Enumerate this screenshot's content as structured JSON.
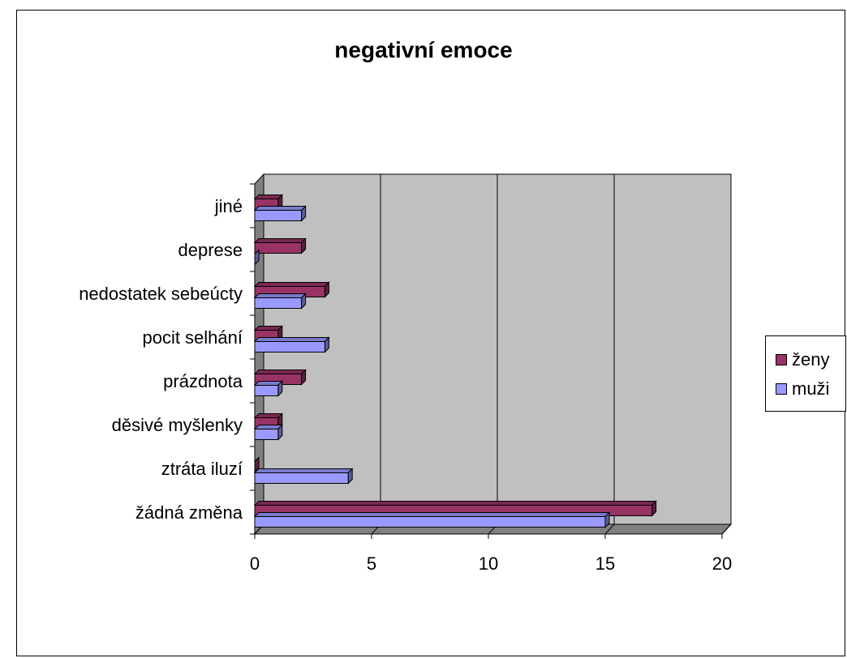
{
  "chart_data": {
    "type": "bar",
    "orientation": "horizontal",
    "title": "negativní emoce",
    "categories": [
      "žádná změna",
      "ztráta iluzí",
      "děsivé myšlenky",
      "prázdnota",
      "pocit selhání",
      "nedostatek sebeúcty",
      "deprese",
      "jiné"
    ],
    "series": [
      {
        "name": "ženy",
        "values": [
          17,
          0,
          1,
          2,
          1,
          3,
          2,
          1
        ],
        "color": "#993366"
      },
      {
        "name": "muži",
        "values": [
          15,
          4,
          1,
          1,
          3,
          2,
          0,
          2
        ],
        "color": "#9999ff"
      }
    ],
    "xlim": [
      0,
      20
    ],
    "xticks": [
      "0",
      "5",
      "10",
      "15",
      "20"
    ],
    "grid": true,
    "legend": "right",
    "plot_bg": "#c0c0c0"
  }
}
